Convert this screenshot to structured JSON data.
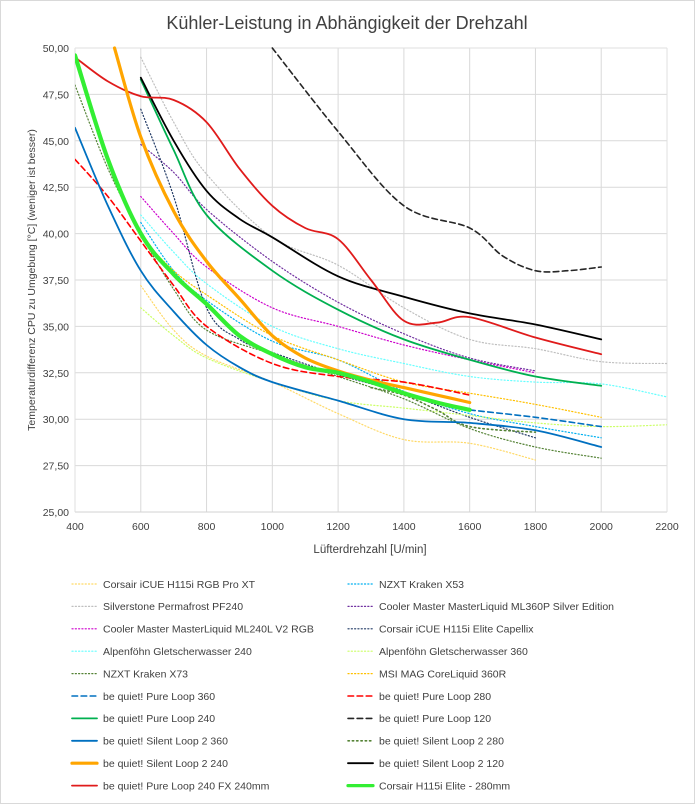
{
  "chart_data": {
    "type": "line",
    "title": "Kühler-Leistung in Abhängigkeit der Drehzahl",
    "xlabel": "Lüfterdrehzahl [U/min]",
    "ylabel": "Temperaturdifferenz  CPU zu Umgebung  [°C]  (weniger  ist besser)",
    "xlim": [
      400,
      2200
    ],
    "ylim": [
      25,
      50
    ],
    "grid": true,
    "legend_position": "bottom",
    "x_ticks": [
      "400",
      "600",
      "800",
      "1000",
      "1200",
      "1400",
      "1600",
      "1800",
      "2000",
      "2200"
    ],
    "y_ticks": [
      "25,00",
      "27,50",
      "30,00",
      "32,50",
      "35,00",
      "37,50",
      "40,00",
      "42,50",
      "45,00",
      "47,50",
      "50,00"
    ],
    "series": [
      {
        "name": "Corsair iCUE H115i RGB Pro XT",
        "color": "#FFD966",
        "dash": "dot",
        "width": 1.2,
        "x": [
          600,
          700,
          800,
          1000,
          1200,
          1400,
          1600,
          1800
        ],
        "y": [
          37.2,
          34.8,
          33.4,
          32.0,
          30.3,
          28.9,
          28.7,
          27.8
        ]
      },
      {
        "name": "NZXT Kraken X53",
        "color": "#00B0F0",
        "dash": "dot",
        "width": 1.2,
        "x": [
          600,
          700,
          800,
          1000,
          1200,
          1400,
          1600,
          1800,
          2000
        ],
        "y": [
          40.6,
          38.0,
          36.4,
          34.2,
          33.2,
          31.5,
          30.3,
          29.6,
          29.0
        ]
      },
      {
        "name": "Silverstone Permafrost PF240",
        "color": "#BFBFBF",
        "dash": "dot",
        "width": 1.2,
        "x": [
          600,
          700,
          800,
          1000,
          1200,
          1400,
          1600,
          1800,
          2000,
          2200
        ],
        "y": [
          49.5,
          46.0,
          43.2,
          39.8,
          38.3,
          36.0,
          34.3,
          33.8,
          33.1,
          33.0
        ]
      },
      {
        "name": "Cooler Master MasterLiquid ML360P Silver Edition",
        "color": "#7030A0",
        "dash": "dot",
        "width": 1.2,
        "x": [
          600,
          700,
          800,
          1000,
          1200,
          1400,
          1600,
          1800
        ],
        "y": [
          44.8,
          43.3,
          41.3,
          38.5,
          36.3,
          34.6,
          33.3,
          32.6
        ]
      },
      {
        "name": "Cooler Master MasterLiquid ML240L V2 RGB",
        "color": "#CC00CC",
        "dash": "dot",
        "width": 1.2,
        "x": [
          600,
          700,
          800,
          1000,
          1200,
          1400,
          1600,
          1800
        ],
        "y": [
          42.0,
          40.0,
          38.2,
          36.0,
          35.0,
          34.0,
          33.2,
          32.5
        ]
      },
      {
        "name": "Corsair iCUE H115i Elite Capellix",
        "color": "#1F3864",
        "dash": "dot",
        "width": 1.2,
        "x": [
          600,
          700,
          800,
          900,
          1000,
          1200,
          1400,
          1600,
          1800
        ],
        "y": [
          46.7,
          42.0,
          36.0,
          34.3,
          33.6,
          32.4,
          31.4,
          30.1,
          29.0
        ]
      },
      {
        "name": "Alpenföhn Gletscherwasser 240",
        "color": "#66FFFF",
        "dash": "dot",
        "width": 1.2,
        "x": [
          600,
          700,
          800,
          1000,
          1200,
          1400,
          1600,
          1800,
          2000,
          2200
        ],
        "y": [
          41.0,
          39.0,
          37.3,
          35.0,
          33.8,
          33.0,
          32.3,
          32.0,
          31.9,
          31.2
        ]
      },
      {
        "name": "Alpenföhn Gletscherwasser 360",
        "color": "#CCFF66",
        "dash": "dot",
        "width": 1.2,
        "x": [
          600,
          700,
          800,
          1000,
          1200,
          1400,
          1600,
          1800,
          2000,
          2200
        ],
        "y": [
          36.0,
          34.5,
          33.3,
          32.0,
          31.0,
          30.6,
          30.2,
          29.8,
          29.6,
          29.7
        ]
      },
      {
        "name": "NZXT Kraken X73",
        "color": "#548235",
        "dash": "dot",
        "width": 1.2,
        "x": [
          400,
          500,
          600,
          700,
          800,
          1000,
          1200,
          1400,
          1600,
          1800,
          2000
        ],
        "y": [
          48.0,
          43.5,
          40.0,
          37.0,
          34.8,
          33.5,
          32.3,
          31.1,
          29.5,
          28.5,
          27.9
        ]
      },
      {
        "name": "MSI MAG CoreLiquid 360R",
        "color": "#FFC000",
        "dash": "dot",
        "width": 1.2,
        "x": [
          600,
          700,
          800,
          1000,
          1200,
          1400,
          1600,
          1800,
          2000
        ],
        "y": [
          39.8,
          38.0,
          36.7,
          34.5,
          33.2,
          32.0,
          31.4,
          30.8,
          30.1
        ]
      },
      {
        "name": "be quiet! Pure Loop 360",
        "color": "#0070C0",
        "dash": "dash",
        "width": 1.6,
        "x": [
          1600,
          1800,
          2000
        ],
        "y": [
          30.5,
          30.1,
          29.6
        ]
      },
      {
        "name": "be quiet! Pure Loop 280",
        "color": "#FF0000",
        "dash": "dash",
        "width": 1.6,
        "x": [
          400,
          500,
          600,
          700,
          800,
          1000,
          1200,
          1400,
          1600
        ],
        "y": [
          44.0,
          42.0,
          39.6,
          37.2,
          35.0,
          33.0,
          32.3,
          32.0,
          31.3
        ]
      },
      {
        "name": "be quiet! Pure Loop 240",
        "color": "#00B050",
        "dash": "solid",
        "width": 1.8,
        "x": [
          600,
          700,
          800,
          1000,
          1200,
          1400,
          1600,
          1800,
          2000
        ],
        "y": [
          48.3,
          44.5,
          41.0,
          38.0,
          35.9,
          34.3,
          33.2,
          32.3,
          31.8
        ]
      },
      {
        "name": "be quiet! Pure Loop 120",
        "color": "#262626",
        "dash": "dash",
        "width": 1.6,
        "x": [
          1000,
          1200,
          1400,
          1600,
          1700,
          1800,
          1900,
          2000
        ],
        "y": [
          50.0,
          45.5,
          41.5,
          40.3,
          38.8,
          38.0,
          38.0,
          38.2
        ]
      },
      {
        "name": "be quiet! Silent Loop 2 360",
        "color": "#0070C0",
        "dash": "solid",
        "width": 1.8,
        "x": [
          400,
          500,
          600,
          700,
          800,
          900,
          1000,
          1200,
          1400,
          1600,
          1800,
          2000
        ],
        "y": [
          45.7,
          41.5,
          38.0,
          35.8,
          34.0,
          32.8,
          32.0,
          31.0,
          30.0,
          29.8,
          29.4,
          28.5
        ]
      },
      {
        "name": "be quiet! Silent Loop 2 280",
        "color": "#548235",
        "dash": "dot",
        "width": 1.6,
        "x": [
          1300,
          1400,
          1500,
          1600,
          1800
        ],
        "y": [
          31.7,
          31.3,
          30.5,
          29.6,
          29.3
        ]
      },
      {
        "name": "be quiet! Silent Loop 2 240",
        "color": "#FFA500",
        "dash": "solid",
        "width": 3.2,
        "x": [
          520,
          600,
          700,
          800,
          900,
          1000,
          1100,
          1200,
          1300,
          1400,
          1500,
          1600
        ],
        "y": [
          50.0,
          45.2,
          41.2,
          38.5,
          36.5,
          34.5,
          33.3,
          32.6,
          32.1,
          31.7,
          31.3,
          30.9
        ]
      },
      {
        "name": "be quiet! Silent Loop 2 120",
        "color": "#000000",
        "dash": "solid",
        "width": 1.8,
        "x": [
          600,
          700,
          800,
          900,
          1000,
          1200,
          1400,
          1600,
          1800,
          2000
        ],
        "y": [
          48.4,
          45.0,
          42.3,
          40.8,
          39.8,
          37.7,
          36.6,
          35.7,
          35.1,
          34.3
        ]
      },
      {
        "name": "be quiet! Pure Loop 240 FX 240mm",
        "color": "#E01B1B",
        "dash": "solid",
        "width": 1.8,
        "x": [
          400,
          500,
          600,
          700,
          800,
          900,
          1000,
          1100,
          1200,
          1300,
          1400,
          1500,
          1600,
          1800,
          2000
        ],
        "y": [
          49.5,
          48.2,
          47.4,
          47.2,
          46.0,
          43.5,
          41.5,
          40.3,
          39.7,
          37.5,
          35.3,
          35.2,
          35.5,
          34.4,
          33.5
        ]
      },
      {
        "name": "Corsair H115i Elite - 280mm",
        "color": "#33EE33",
        "dash": "solid",
        "width": 4.2,
        "x": [
          400,
          500,
          600,
          700,
          800,
          900,
          1000,
          1100,
          1200,
          1300,
          1400,
          1500,
          1600
        ],
        "y": [
          49.6,
          44.0,
          40.0,
          37.8,
          36.2,
          34.5,
          33.5,
          32.8,
          32.5,
          32.0,
          31.4,
          30.9,
          30.5
        ]
      }
    ]
  }
}
